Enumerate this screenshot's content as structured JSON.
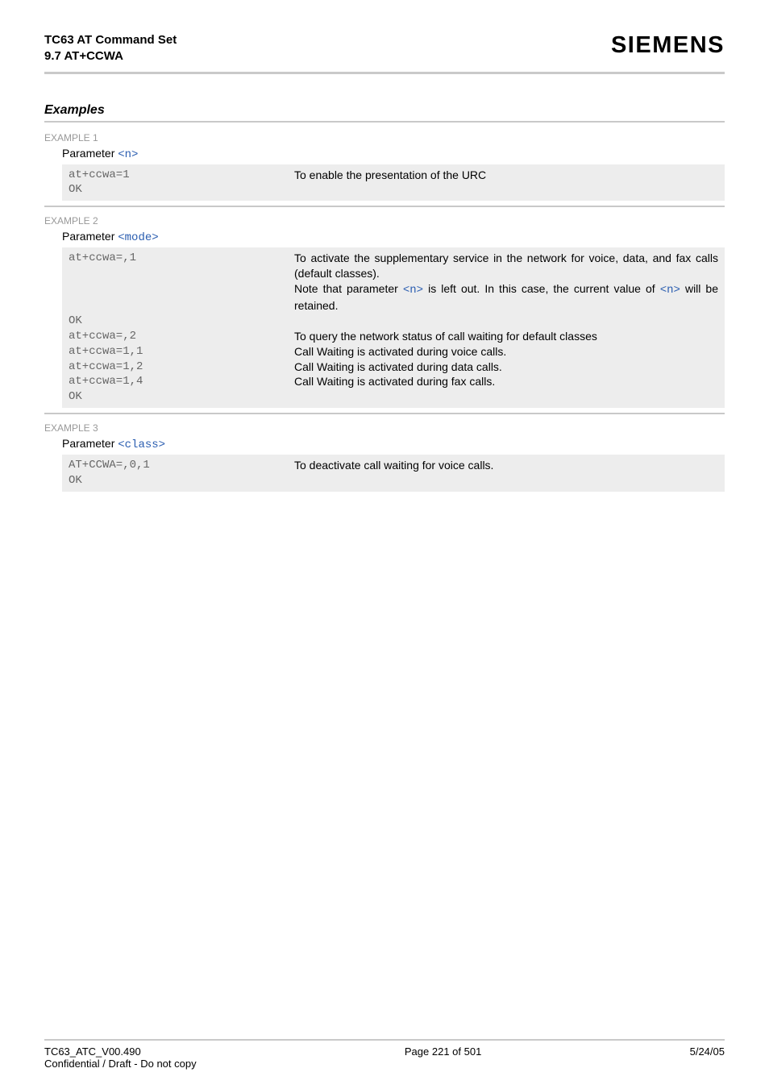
{
  "header": {
    "title_line1": "TC63 AT Command Set",
    "title_line2": "9.7 AT+CCWA",
    "logo": "SIEMENS"
  },
  "sections": {
    "examples_title": "Examples"
  },
  "example1": {
    "label": "EXAMPLE 1",
    "param_label": "Parameter ",
    "param_link": "<n>",
    "cmd1": "at+ccwa=1",
    "desc1": "To enable the presentation of the URC",
    "cmd2": "OK"
  },
  "example2": {
    "label": "EXAMPLE 2",
    "param_label": "Parameter ",
    "param_link": "<mode>",
    "cmd1": "at+ccwa=,1",
    "desc1_a": "To activate the supplementary service in the network for voice, data, and fax calls (default classes).",
    "desc1_b_pre": "Note that parameter ",
    "desc1_b_link1": "<n>",
    "desc1_b_mid": " is left out. In this case, the current value of ",
    "desc1_b_link2": "<n>",
    "desc1_b_post": " will be retained.",
    "cmd_ok": "OK",
    "cmd2": "at+ccwa=,2",
    "desc2": "To query the network status of call waiting for default classes",
    "cmd3": "at+ccwa=1,1",
    "desc3": "Call Waiting is activated during voice calls.",
    "cmd4": "at+ccwa=1,2",
    "desc4": "Call Waiting is activated during data calls.",
    "cmd5": "at+ccwa=1,4",
    "desc5": "Call Waiting is activated during fax calls.",
    "cmd6": "OK"
  },
  "example3": {
    "label": "EXAMPLE 3",
    "param_label": "Parameter ",
    "param_link": "<class>",
    "cmd1": "AT+CCWA=,0,1",
    "desc1": "To deactivate call waiting for voice calls.",
    "cmd2": "OK"
  },
  "footer": {
    "left_line1": "TC63_ATC_V00.490",
    "left_line2": "Confidential / Draft - Do not copy",
    "center": "Page 221 of 501",
    "right": "5/24/05"
  }
}
